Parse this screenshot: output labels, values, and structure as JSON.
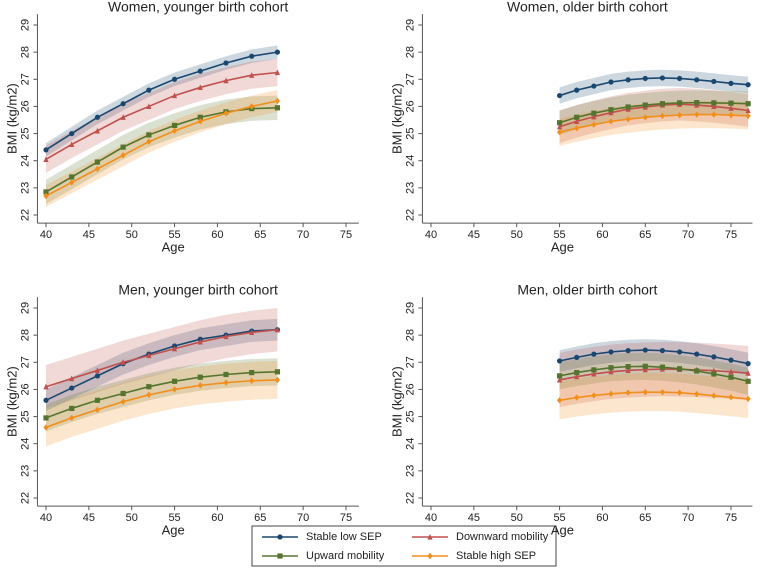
{
  "chart_data": [
    {
      "type": "line",
      "title": "Women, younger birth cohort",
      "xlabel": "Age",
      "ylabel": "BMI (kg/m2)",
      "x": [
        40,
        43,
        46,
        49,
        52,
        55,
        58,
        61,
        64,
        67
      ],
      "xlim": [
        39,
        76.5
      ],
      "ylim": [
        21.7,
        29.4
      ],
      "xticks": [
        40,
        45,
        50,
        55,
        60,
        65,
        70,
        75
      ],
      "yticks": [
        22,
        23,
        24,
        25,
        26,
        27,
        28,
        29
      ],
      "series": [
        {
          "name": "Stable low SEP",
          "color": "#1a476f",
          "marker": "circle",
          "ci": 0.25,
          "values": [
            24.4,
            25.0,
            25.6,
            26.1,
            26.6,
            27.0,
            27.3,
            27.6,
            27.85,
            28.0
          ]
        },
        {
          "name": "Downward mobility",
          "color": "#c0504d",
          "marker": "triangle",
          "ci": 0.5,
          "values": [
            24.05,
            24.6,
            25.1,
            25.6,
            26.0,
            26.4,
            26.7,
            26.95,
            27.15,
            27.25
          ]
        },
        {
          "name": "Upward mobility",
          "color": "#55752f",
          "marker": "square",
          "ci": 0.45,
          "values": [
            22.85,
            23.4,
            23.95,
            24.5,
            24.95,
            25.3,
            25.6,
            25.8,
            25.92,
            25.95
          ]
        },
        {
          "name": "Stable high SEP",
          "color": "#f28e1c",
          "marker": "diamond",
          "ci": 0.4,
          "values": [
            22.7,
            23.2,
            23.7,
            24.2,
            24.7,
            25.1,
            25.45,
            25.75,
            26.0,
            26.2
          ]
        }
      ]
    },
    {
      "type": "line",
      "title": "Women, older birth cohort",
      "xlabel": "Age",
      "ylabel": "BMI (kg/m2)",
      "x": [
        55,
        57,
        59,
        61,
        63,
        65,
        67,
        69,
        71,
        73,
        75,
        77
      ],
      "xlim": [
        39,
        77.5
      ],
      "ylim": [
        21.7,
        29.4
      ],
      "xticks": [
        40,
        45,
        50,
        55,
        60,
        65,
        70,
        75
      ],
      "yticks": [
        22,
        23,
        24,
        25,
        26,
        27,
        28,
        29
      ],
      "series": [
        {
          "name": "Stable low SEP",
          "color": "#1a476f",
          "marker": "circle",
          "ci": 0.3,
          "values": [
            26.4,
            26.6,
            26.75,
            26.9,
            26.98,
            27.03,
            27.05,
            27.03,
            26.98,
            26.92,
            26.85,
            26.8
          ]
        },
        {
          "name": "Downward mobility",
          "color": "#c0504d",
          "marker": "triangle",
          "ci": 0.6,
          "values": [
            25.25,
            25.45,
            25.62,
            25.77,
            25.9,
            25.98,
            26.05,
            26.08,
            26.05,
            26.0,
            25.93,
            25.85
          ]
        },
        {
          "name": "Upward mobility",
          "color": "#55752f",
          "marker": "square",
          "ci": 0.45,
          "values": [
            25.4,
            25.6,
            25.75,
            25.88,
            25.98,
            26.05,
            26.1,
            26.13,
            26.14,
            26.13,
            26.12,
            26.1
          ]
        },
        {
          "name": "Stable high SEP",
          "color": "#f28e1c",
          "marker": "diamond",
          "ci": 0.5,
          "values": [
            25.05,
            25.2,
            25.33,
            25.45,
            25.53,
            25.6,
            25.65,
            25.68,
            25.7,
            25.7,
            25.68,
            25.65
          ]
        }
      ]
    },
    {
      "type": "line",
      "title": "Men, younger birth cohort",
      "xlabel": "Age",
      "ylabel": "BMI (kg/m2)",
      "x": [
        40,
        43,
        46,
        49,
        52,
        55,
        58,
        61,
        64,
        67
      ],
      "xlim": [
        39,
        76.5
      ],
      "ylim": [
        21.7,
        29.4
      ],
      "xticks": [
        40,
        45,
        50,
        55,
        60,
        65,
        70,
        75
      ],
      "yticks": [
        22,
        23,
        24,
        25,
        26,
        27,
        28,
        29
      ],
      "series": [
        {
          "name": "Stable low SEP",
          "color": "#1a476f",
          "marker": "circle",
          "ci": 0.4,
          "values": [
            25.6,
            26.05,
            26.5,
            26.95,
            27.3,
            27.6,
            27.85,
            28.0,
            28.15,
            28.2
          ]
        },
        {
          "name": "Downward mobility",
          "color": "#c0504d",
          "marker": "triangle",
          "ci": 0.8,
          "values": [
            26.1,
            26.4,
            26.7,
            27.0,
            27.25,
            27.5,
            27.75,
            27.95,
            28.1,
            28.2
          ]
        },
        {
          "name": "Upward mobility",
          "color": "#55752f",
          "marker": "square",
          "ci": 0.5,
          "values": [
            24.95,
            25.3,
            25.6,
            25.85,
            26.1,
            26.3,
            26.45,
            26.55,
            26.62,
            26.65
          ]
        },
        {
          "name": "Stable high SEP",
          "color": "#f28e1c",
          "marker": "diamond",
          "ci": 0.7,
          "values": [
            24.6,
            24.95,
            25.25,
            25.55,
            25.8,
            26.0,
            26.15,
            26.25,
            26.32,
            26.35
          ]
        }
      ]
    },
    {
      "type": "line",
      "title": "Men, older birth cohort",
      "xlabel": "Age",
      "ylabel": "BMI (kg/m2)",
      "x": [
        55,
        57,
        59,
        61,
        63,
        65,
        67,
        69,
        71,
        73,
        75,
        77
      ],
      "xlim": [
        39,
        77.5
      ],
      "ylim": [
        21.7,
        29.4
      ],
      "xticks": [
        40,
        45,
        50,
        55,
        60,
        65,
        70,
        75
      ],
      "yticks": [
        22,
        23,
        24,
        25,
        26,
        27,
        28,
        29
      ],
      "series": [
        {
          "name": "Stable low SEP",
          "color": "#1a476f",
          "marker": "circle",
          "ci": 0.4,
          "values": [
            27.05,
            27.18,
            27.3,
            27.38,
            27.43,
            27.45,
            27.43,
            27.38,
            27.3,
            27.2,
            27.08,
            26.95
          ]
        },
        {
          "name": "Downward mobility",
          "color": "#c0504d",
          "marker": "triangle",
          "ci": 1.0,
          "values": [
            26.35,
            26.47,
            26.57,
            26.65,
            26.7,
            26.73,
            26.75,
            26.74,
            26.72,
            26.69,
            26.65,
            26.6
          ]
        },
        {
          "name": "Upward mobility",
          "color": "#55752f",
          "marker": "square",
          "ci": 0.5,
          "values": [
            26.5,
            26.62,
            26.72,
            26.8,
            26.84,
            26.85,
            26.82,
            26.76,
            26.68,
            26.57,
            26.45,
            26.3
          ]
        },
        {
          "name": "Stable high SEP",
          "color": "#f28e1c",
          "marker": "diamond",
          "ci": 0.7,
          "values": [
            25.6,
            25.7,
            25.78,
            25.84,
            25.88,
            25.9,
            25.9,
            25.88,
            25.83,
            25.77,
            25.71,
            25.65
          ]
        }
      ]
    }
  ]
}
